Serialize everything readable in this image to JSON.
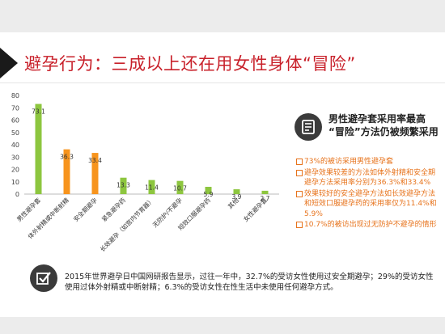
{
  "title": "避孕行为：三成以上还在用女性身体“冒险”",
  "side_heading": "男性避孕套采用率最高 “冒险”方法仍被频繁采用",
  "findings": [
    "73%的被访采用男性避孕套",
    "避孕效果较差的方法如体外射精和安全期避孕方法采用率分别为36.3%和33.4%",
    "效果较好的安全避孕方法如长效避孕方法和短效口服避孕药的采用率仅为11.4%和5.9%",
    "10.7%的被访出现过无防护不避孕的情形"
  ],
  "bottom_text": "2015年世界避孕日中国网研报告显示，过往一年中，32.7%的受访女性使用过安全期避孕；29%的受访女性使用过体外射精或中断射精；6.3%的受访女性在性生活中未使用任何避孕方式。",
  "colors": {
    "green": "#8dc63f",
    "orange": "#f7941d",
    "title_red": "#c8202a",
    "finding_orange": "#e7731c"
  },
  "icons": {
    "side": "document-icon",
    "bottom": "checkbox-icon"
  },
  "chart_data": {
    "type": "bar",
    "categories": [
      "男性避孕套",
      "体外射精或中断射精",
      "安全期避孕",
      "紧急避孕药",
      "长效避孕（如宫内节育器）",
      "无防护/不避孕",
      "短效口服避孕药",
      "其他",
      "女性避孕套"
    ],
    "values": [
      73.1,
      36.3,
      33.4,
      13.3,
      11.4,
      10.7,
      5.9,
      3.9,
      2.7
    ],
    "value_labels": [
      "73.1",
      "36.3",
      "33.4",
      "13.3",
      "11.4",
      "10.7",
      "5.9",
      "3.9",
      "2.7"
    ],
    "bar_colors": [
      "#8dc63f",
      "#f7941d",
      "#f7941d",
      "#8dc63f",
      "#8dc63f",
      "#8dc63f",
      "#8dc63f",
      "#8dc63f",
      "#8dc63f"
    ],
    "ylim": [
      0,
      80
    ],
    "yticks": [
      0,
      10,
      20,
      30,
      40,
      50,
      60,
      70,
      80
    ],
    "title": "",
    "xlabel": "",
    "ylabel": "",
    "grid": false,
    "legend": "none"
  }
}
